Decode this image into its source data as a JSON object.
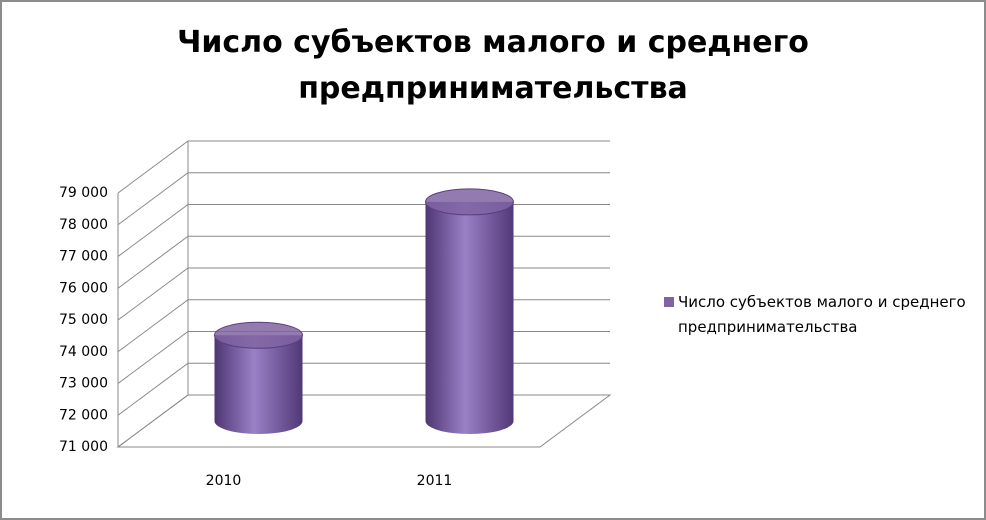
{
  "chart_data": {
    "type": "bar3d",
    "title": "Число субъектов малого и среднего предпринимательства",
    "categories": [
      "2010",
      "2011"
    ],
    "series": [
      {
        "name": "Число субъектов малого и среднего предпринимательства",
        "color": "#8064a2",
        "values": [
          73700,
          77900
        ]
      }
    ],
    "ylim": [
      71000,
      79000
    ],
    "yticks": [
      {
        "value": 71000,
        "label": "71 000"
      },
      {
        "value": 72000,
        "label": "72 000"
      },
      {
        "value": 73000,
        "label": "73 000"
      },
      {
        "value": 74000,
        "label": "74 000"
      },
      {
        "value": 75000,
        "label": "75 000"
      },
      {
        "value": 76000,
        "label": "76 000"
      },
      {
        "value": 77000,
        "label": "77 000"
      },
      {
        "value": 78000,
        "label": "78 000"
      },
      {
        "value": 79000,
        "label": "79 000"
      }
    ],
    "grid": true,
    "legend": "right"
  }
}
